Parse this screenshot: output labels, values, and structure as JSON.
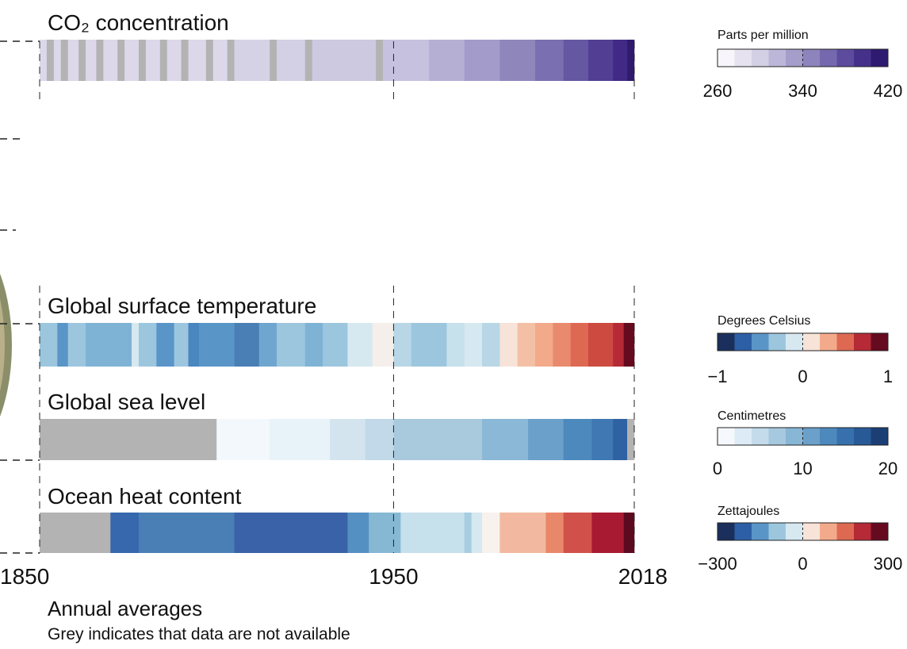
{
  "chart_data": {
    "type": "stripes",
    "xlim": [
      1850,
      2018
    ],
    "xticks": [
      1850,
      1950,
      2018
    ],
    "caption": "Annual averages",
    "note": "Grey indicates that data are not available",
    "strips": [
      {
        "title": "CO₂ concentration",
        "segments": [
          {
            "from": 1850,
            "to": 1852,
            "color": "#dcd8ea"
          },
          {
            "from": 1852,
            "to": 1854,
            "color": "#b3b3b3"
          },
          {
            "from": 1854,
            "to": 1856,
            "color": "#dcd8ea"
          },
          {
            "from": 1856,
            "to": 1858,
            "color": "#b3b3b3"
          },
          {
            "from": 1858,
            "to": 1861,
            "color": "#dcd8ea"
          },
          {
            "from": 1861,
            "to": 1863,
            "color": "#b3b3b3"
          },
          {
            "from": 1863,
            "to": 1866,
            "color": "#dcd8ea"
          },
          {
            "from": 1866,
            "to": 1868,
            "color": "#b3b3b3"
          },
          {
            "from": 1868,
            "to": 1872,
            "color": "#dcd8ea"
          },
          {
            "from": 1872,
            "to": 1874,
            "color": "#b3b3b3"
          },
          {
            "from": 1874,
            "to": 1878,
            "color": "#dcd8ea"
          },
          {
            "from": 1878,
            "to": 1880,
            "color": "#b3b3b3"
          },
          {
            "from": 1880,
            "to": 1884,
            "color": "#dcd8ea"
          },
          {
            "from": 1884,
            "to": 1886,
            "color": "#b3b3b3"
          },
          {
            "from": 1886,
            "to": 1890,
            "color": "#dcd8ea"
          },
          {
            "from": 1890,
            "to": 1892,
            "color": "#b3b3b3"
          },
          {
            "from": 1892,
            "to": 1897,
            "color": "#dcd8ea"
          },
          {
            "from": 1897,
            "to": 1899,
            "color": "#b3b3b3"
          },
          {
            "from": 1899,
            "to": 1903,
            "color": "#dcd8ea"
          },
          {
            "from": 1903,
            "to": 1905,
            "color": "#b3b3b3"
          },
          {
            "from": 1905,
            "to": 1915,
            "color": "#d6d2e6"
          },
          {
            "from": 1915,
            "to": 1917,
            "color": "#b3b3b3"
          },
          {
            "from": 1917,
            "to": 1925,
            "color": "#d3cfe4"
          },
          {
            "from": 1925,
            "to": 1927,
            "color": "#b3b3b3"
          },
          {
            "from": 1927,
            "to": 1945,
            "color": "#cdc9e1"
          },
          {
            "from": 1945,
            "to": 1947,
            "color": "#b3b3b3"
          },
          {
            "from": 1947,
            "to": 1960,
            "color": "#c6c1de"
          },
          {
            "from": 1960,
            "to": 1970,
            "color": "#b5afd4"
          },
          {
            "from": 1970,
            "to": 1980,
            "color": "#a39bc9"
          },
          {
            "from": 1980,
            "to": 1990,
            "color": "#8f86bc"
          },
          {
            "from": 1990,
            "to": 1998,
            "color": "#7a6fb0"
          },
          {
            "from": 1998,
            "to": 2005,
            "color": "#6657a2"
          },
          {
            "from": 2005,
            "to": 2012,
            "color": "#523f94"
          },
          {
            "from": 2012,
            "to": 2016,
            "color": "#412a85"
          },
          {
            "from": 2016,
            "to": 2018,
            "color": "#2f1a6e"
          }
        ]
      },
      {
        "title": "Global surface temperature",
        "segments": [
          {
            "from": 1850,
            "to": 1855,
            "color": "#9cc6de"
          },
          {
            "from": 1855,
            "to": 1858,
            "color": "#5a95c8"
          },
          {
            "from": 1858,
            "to": 1863,
            "color": "#9cc6de"
          },
          {
            "from": 1863,
            "to": 1876,
            "color": "#7fb3d5"
          },
          {
            "from": 1876,
            "to": 1878,
            "color": "#d6e8f0"
          },
          {
            "from": 1878,
            "to": 1883,
            "color": "#9cc6de"
          },
          {
            "from": 1883,
            "to": 1888,
            "color": "#5a95c8"
          },
          {
            "from": 1888,
            "to": 1892,
            "color": "#9cc6de"
          },
          {
            "from": 1892,
            "to": 1895,
            "color": "#4a86c0"
          },
          {
            "from": 1895,
            "to": 1905,
            "color": "#5a95c8"
          },
          {
            "from": 1905,
            "to": 1912,
            "color": "#4a7fb5"
          },
          {
            "from": 1912,
            "to": 1917,
            "color": "#6fa6cf"
          },
          {
            "from": 1917,
            "to": 1925,
            "color": "#9cc6de"
          },
          {
            "from": 1925,
            "to": 1930,
            "color": "#7fb3d5"
          },
          {
            "from": 1930,
            "to": 1937,
            "color": "#9cc6de"
          },
          {
            "from": 1937,
            "to": 1944,
            "color": "#d6e8f0"
          },
          {
            "from": 1944,
            "to": 1950,
            "color": "#f4efea"
          },
          {
            "from": 1950,
            "to": 1955,
            "color": "#b8d6e6"
          },
          {
            "from": 1955,
            "to": 1965,
            "color": "#9cc6de"
          },
          {
            "from": 1965,
            "to": 1970,
            "color": "#c6e0ec"
          },
          {
            "from": 1970,
            "to": 1975,
            "color": "#d6e8f0"
          },
          {
            "from": 1975,
            "to": 1980,
            "color": "#b8d6e6"
          },
          {
            "from": 1980,
            "to": 1985,
            "color": "#f8e3d8"
          },
          {
            "from": 1985,
            "to": 1990,
            "color": "#f3c0a6"
          },
          {
            "from": 1990,
            "to": 1995,
            "color": "#f3aa8b"
          },
          {
            "from": 1995,
            "to": 2000,
            "color": "#e98a6e"
          },
          {
            "from": 2000,
            "to": 2005,
            "color": "#de6953"
          },
          {
            "from": 2005,
            "to": 2012,
            "color": "#cc4a40"
          },
          {
            "from": 2012,
            "to": 2015,
            "color": "#b52a36"
          },
          {
            "from": 2015,
            "to": 2018,
            "color": "#660a1f"
          }
        ]
      },
      {
        "title": "Global sea level",
        "segments": [
          {
            "from": 1850,
            "to": 1900,
            "color": "#b3b3b3"
          },
          {
            "from": 1900,
            "to": 1915,
            "color": "#f3f8fc"
          },
          {
            "from": 1915,
            "to": 1932,
            "color": "#e8f2f9"
          },
          {
            "from": 1932,
            "to": 1942,
            "color": "#d4e4ef"
          },
          {
            "from": 1942,
            "to": 1950,
            "color": "#c1d9e8"
          },
          {
            "from": 1950,
            "to": 1975,
            "color": "#a9c9dd"
          },
          {
            "from": 1975,
            "to": 1988,
            "color": "#8ab8d6"
          },
          {
            "from": 1988,
            "to": 1998,
            "color": "#6aa0c9"
          },
          {
            "from": 1998,
            "to": 2006,
            "color": "#4d89bc"
          },
          {
            "from": 2006,
            "to": 2012,
            "color": "#3f78b2"
          },
          {
            "from": 2012,
            "to": 2016,
            "color": "#2f62a3"
          },
          {
            "from": 2016,
            "to": 2018,
            "color": "#b3b3b3"
          }
        ]
      },
      {
        "title": "Ocean heat content",
        "segments": [
          {
            "from": 1850,
            "to": 1870,
            "color": "#b3b3b3"
          },
          {
            "from": 1870,
            "to": 1878,
            "color": "#3767ad"
          },
          {
            "from": 1878,
            "to": 1905,
            "color": "#4a7fb5"
          },
          {
            "from": 1905,
            "to": 1937,
            "color": "#3a62a8"
          },
          {
            "from": 1937,
            "to": 1943,
            "color": "#5590c2"
          },
          {
            "from": 1943,
            "to": 1952,
            "color": "#86b8d4"
          },
          {
            "from": 1952,
            "to": 1970,
            "color": "#c6e0ec"
          },
          {
            "from": 1970,
            "to": 1972,
            "color": "#a6cde0"
          },
          {
            "from": 1972,
            "to": 1975,
            "color": "#d6e8f0"
          },
          {
            "from": 1975,
            "to": 1980,
            "color": "#f7f2ee"
          },
          {
            "from": 1980,
            "to": 1993,
            "color": "#f3b9a0"
          },
          {
            "from": 1993,
            "to": 1998,
            "color": "#e9876b"
          },
          {
            "from": 1998,
            "to": 2006,
            "color": "#d1514a"
          },
          {
            "from": 2006,
            "to": 2015,
            "color": "#a81a31"
          },
          {
            "from": 2015,
            "to": 2018,
            "color": "#5c0a1f"
          }
        ]
      }
    ],
    "colorbars": [
      {
        "title": "Parts per million",
        "lim": [
          260,
          420
        ],
        "ticks": [
          260,
          340,
          420
        ],
        "colors": [
          "#f8f6fb",
          "#e6e2ef",
          "#d3cfe4",
          "#bcb7d8",
          "#a59ecb",
          "#8d84bd",
          "#7568ae",
          "#5d4b9d",
          "#45308a",
          "#2e1a70"
        ]
      },
      {
        "title": "Degrees Celsius",
        "lim": [
          -1,
          1
        ],
        "ticks": [
          {
            "value": -1,
            "label": "−1"
          },
          0,
          1
        ],
        "colors": [
          "#1a2f5c",
          "#2d5fa6",
          "#5a95c8",
          "#9cc6de",
          "#d6e8f0",
          "#f8e3d8",
          "#f3aa8b",
          "#de6953",
          "#b52a36",
          "#660a1f"
        ]
      },
      {
        "title": "Centimetres",
        "lim": [
          0,
          20
        ],
        "ticks": [
          0,
          10,
          20
        ],
        "colors": [
          "#f5f9fd",
          "#dcebf5",
          "#c3dbea",
          "#a6c9e0",
          "#88b6d5",
          "#6aa0c9",
          "#4d89bc",
          "#3770ad",
          "#275a97",
          "#1b3f75"
        ]
      },
      {
        "title": "Zettajoules",
        "lim": [
          -300,
          300
        ],
        "ticks": [
          {
            "value": -300,
            "label": "−300"
          },
          0,
          300
        ],
        "colors": [
          "#1a2f5c",
          "#2d5fa6",
          "#5a95c8",
          "#9cc6de",
          "#d6e8f0",
          "#f8e3d8",
          "#f3aa8b",
          "#de6953",
          "#b52a36",
          "#660a1f"
        ]
      }
    ]
  }
}
